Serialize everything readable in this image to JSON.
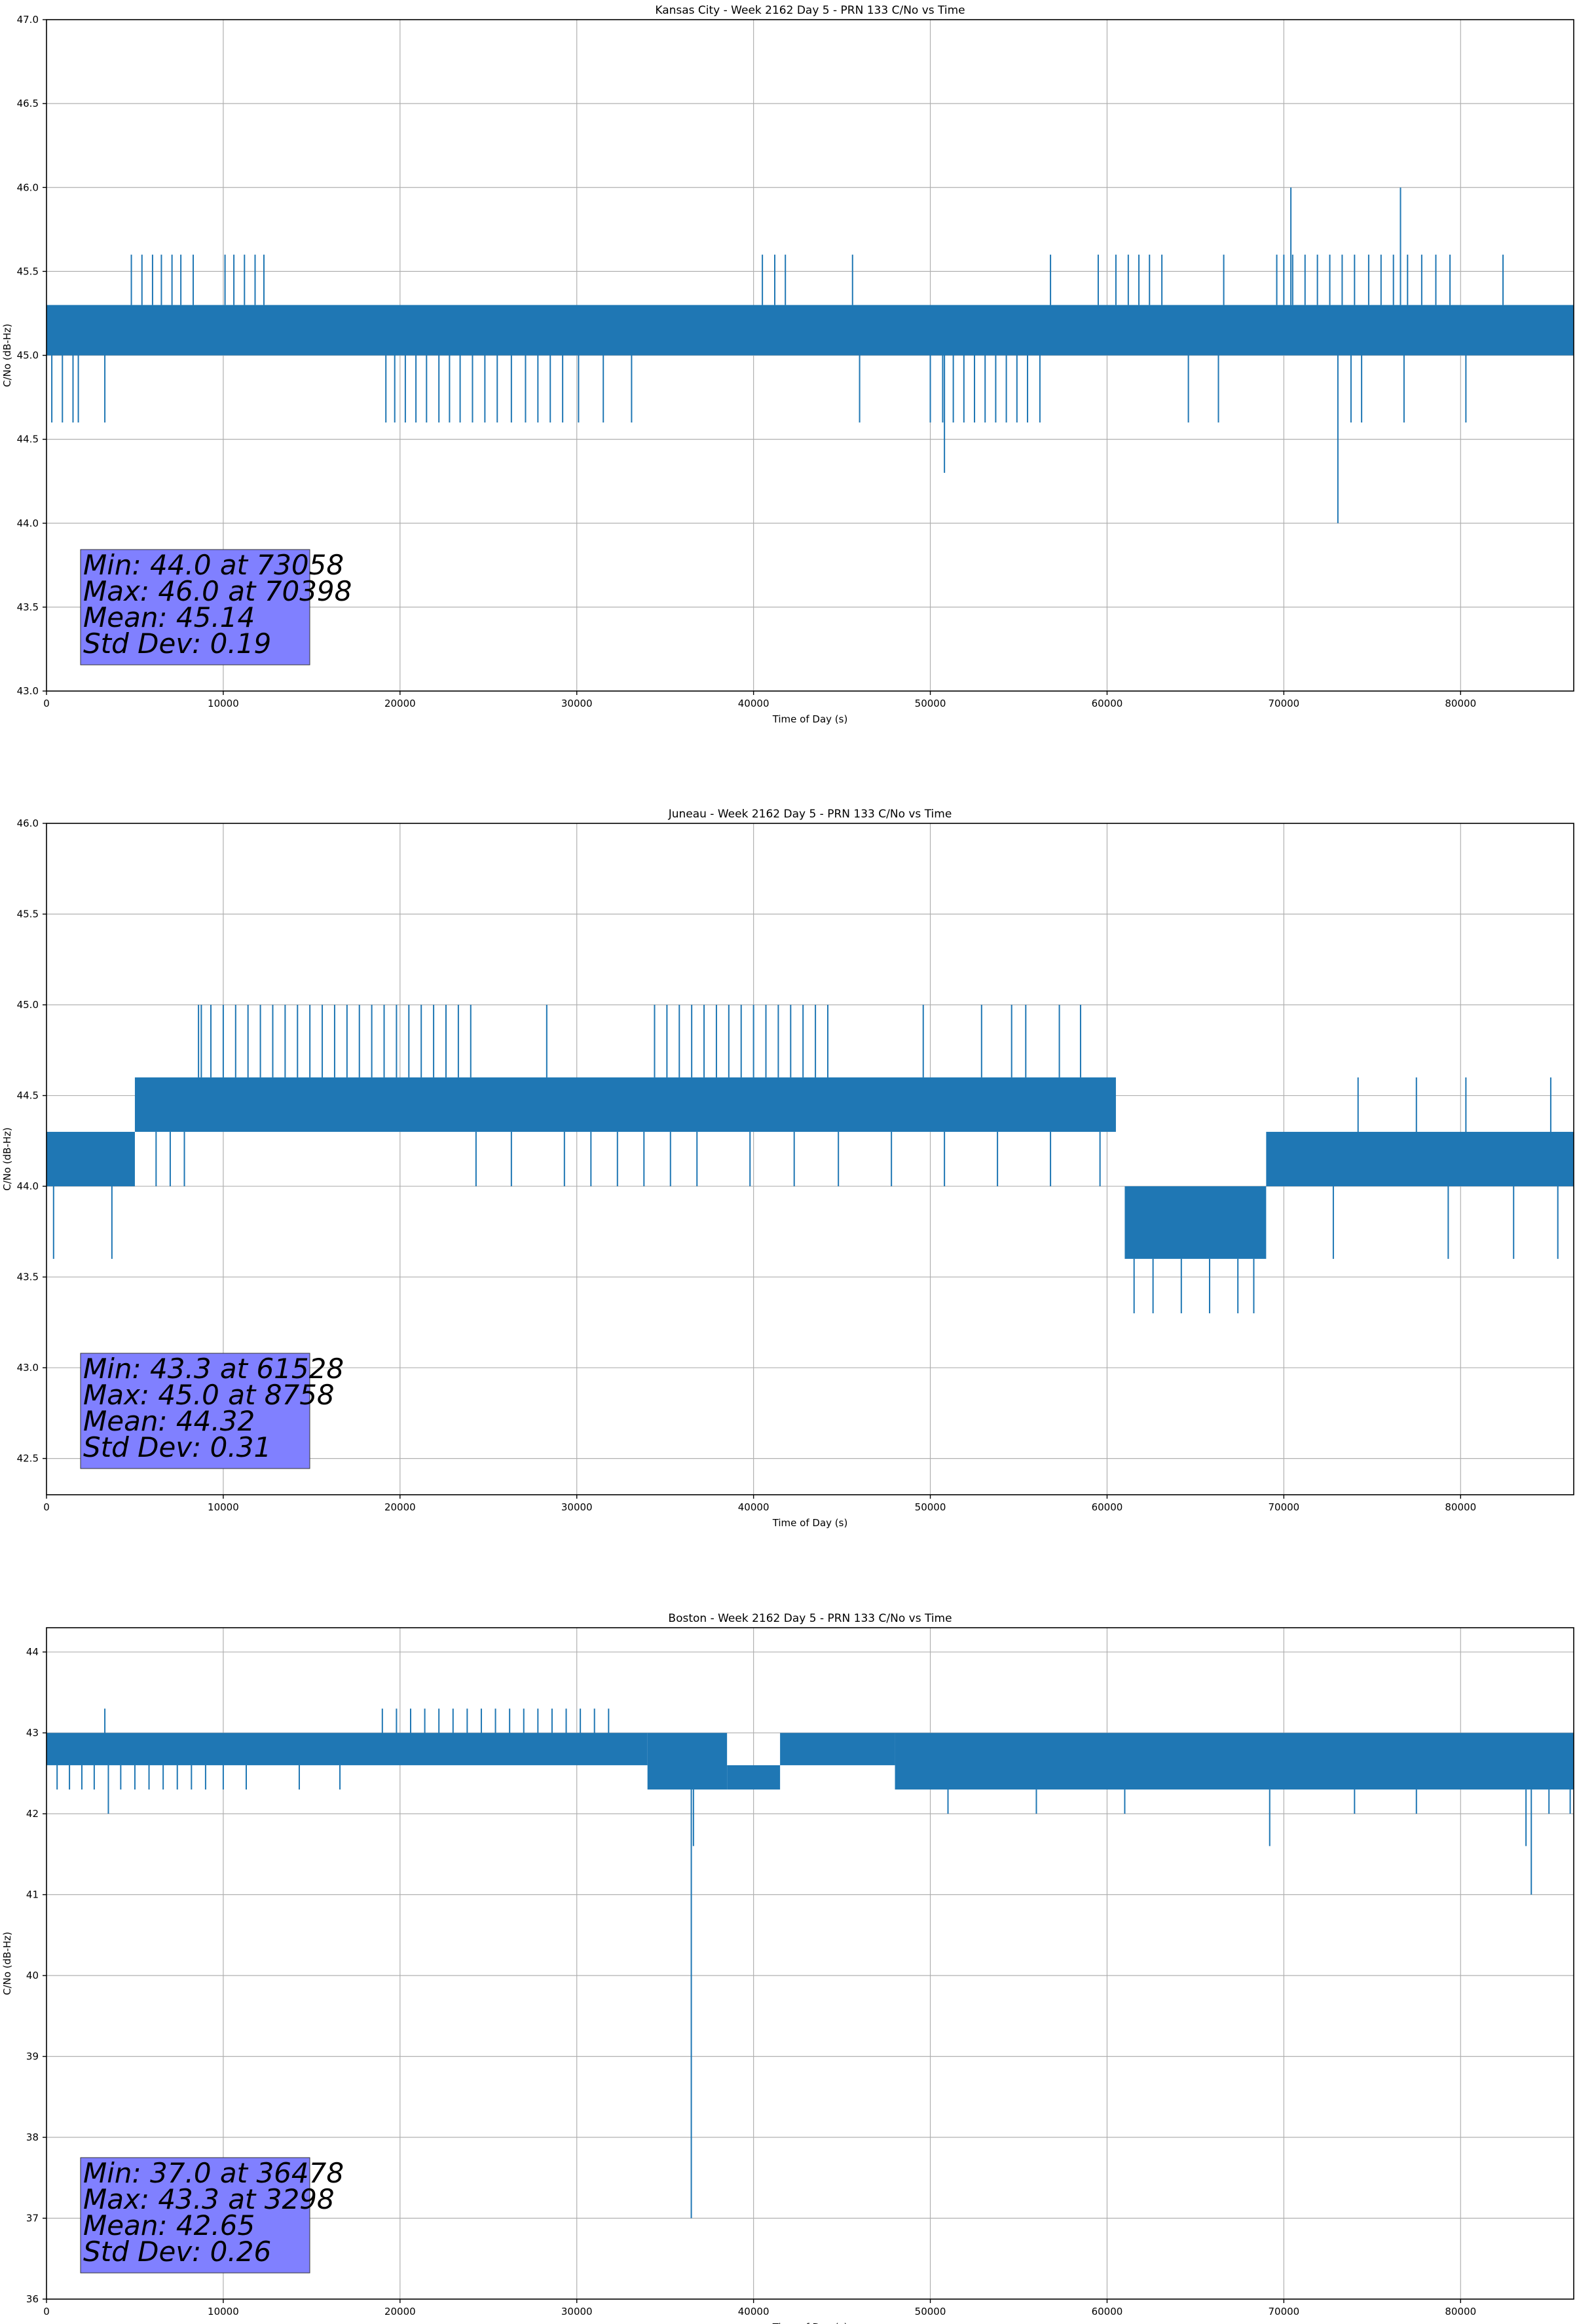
{
  "chart_data": [
    {
      "type": "line",
      "title": "Kansas City - Week 2162 Day 5 - PRN 133 C/No vs Time",
      "xlabel": "Time of Day (s)",
      "ylabel": "C/No (dB-Hz)",
      "xlim": [
        0,
        86400
      ],
      "ylim": [
        43.0,
        47.0
      ],
      "xticks": [
        0,
        10000,
        20000,
        30000,
        40000,
        50000,
        60000,
        70000,
        80000
      ],
      "yticks": [
        43.0,
        43.5,
        44.0,
        44.5,
        45.0,
        45.5,
        46.0,
        46.5,
        47.0
      ],
      "ytick_decimals": 1,
      "grid": true,
      "color": "#1f77b4",
      "bands": [
        {
          "x0": 0,
          "x1": 86400,
          "y0": 45.0,
          "y1": 45.3
        }
      ],
      "low_spikes": {
        "value": 44.6,
        "x": [
          300,
          900,
          1500,
          1800,
          3300,
          19200,
          19700,
          20300,
          20900,
          21500,
          22200,
          22800,
          23400,
          24100,
          24800,
          25500,
          26300,
          27100,
          27800,
          28500,
          29200,
          30100,
          31500,
          33100,
          46000,
          50000,
          50700,
          51300,
          51900,
          52500,
          53100,
          53700,
          54300,
          54900,
          55500,
          56200,
          64600,
          66300,
          73800,
          74400,
          76800,
          80300
        ]
      },
      "high_spikes": {
        "value": 45.6,
        "x": [
          4800,
          5400,
          6000,
          6500,
          7100,
          7600,
          8300,
          10100,
          10600,
          11200,
          11800,
          12300,
          40500,
          41200,
          41800,
          45600,
          56800,
          59500,
          60500,
          61200,
          61800,
          62400,
          63100,
          66600,
          69600,
          70000,
          70500,
          71200,
          71900,
          72600,
          73300,
          74000,
          74800,
          75500,
          76200,
          77000,
          77800,
          78600,
          79400,
          82400
        ]
      },
      "extremes": [
        {
          "x": 70398,
          "y": 46.0
        },
        {
          "x": 76600,
          "y": 46.0
        },
        {
          "x": 73058,
          "y": 44.0
        },
        {
          "x": 50800,
          "y": 44.3
        }
      ],
      "stats": [
        "Min: 44.0 at 73058",
        "Max: 46.0 at 70398",
        "Mean: 45.14",
        "Std Dev: 0.19"
      ]
    },
    {
      "type": "line",
      "title": "Juneau - Week 2162 Day 5 - PRN 133 C/No vs Time",
      "xlabel": "Time of Day (s)",
      "ylabel": "C/No (dB-Hz)",
      "xlim": [
        0,
        86400
      ],
      "ylim": [
        42.3,
        46.0
      ],
      "xticks": [
        0,
        10000,
        20000,
        30000,
        40000,
        50000,
        60000,
        70000,
        80000
      ],
      "yticks": [
        42.5,
        43.0,
        43.5,
        44.0,
        44.5,
        45.0,
        45.5,
        46.0
      ],
      "ytick_decimals": 1,
      "grid": true,
      "color": "#1f77b4",
      "bands": [
        {
          "x0": 0,
          "x1": 5000,
          "y0": 44.0,
          "y1": 44.3
        },
        {
          "x0": 5000,
          "x1": 60500,
          "y0": 44.3,
          "y1": 44.6
        },
        {
          "x0": 61000,
          "x1": 69000,
          "y0": 43.6,
          "y1": 44.0
        },
        {
          "x0": 69000,
          "x1": 86400,
          "y0": 44.0,
          "y1": 44.3
        }
      ],
      "low_spikes": {
        "value": 44.0,
        "x": [
          6200,
          7000,
          7800,
          24300,
          26300,
          29300,
          30800,
          32300,
          33800,
          35300,
          36800,
          39800,
          42300,
          44800,
          47800,
          50800,
          53800,
          56800,
          59600
        ]
      },
      "high_spikes": {
        "value": 45.0,
        "x": [
          8600,
          9300,
          10000,
          10700,
          11400,
          12100,
          12800,
          13500,
          14200,
          14900,
          15600,
          16300,
          17000,
          17700,
          18400,
          19100,
          19800,
          20500,
          21200,
          21900,
          22600,
          23300,
          24000,
          28300,
          34400,
          35100,
          35800,
          36500,
          37200,
          37900,
          38600,
          39300,
          40000,
          40700,
          41400,
          42100,
          42800,
          43500,
          44200,
          49600,
          52900,
          54600,
          55400,
          57300,
          58500
        ]
      },
      "extremes": [
        {
          "x": 8758,
          "y": 45.0
        },
        {
          "x": 61528,
          "y": 43.3
        },
        {
          "x": 62600,
          "y": 43.3
        },
        {
          "x": 64200,
          "y": 43.3
        },
        {
          "x": 65800,
          "y": 43.3
        },
        {
          "x": 67400,
          "y": 43.3
        },
        {
          "x": 68300,
          "y": 43.3
        },
        {
          "x": 3700,
          "y": 43.6
        },
        {
          "x": 400,
          "y": 43.6
        },
        {
          "x": 72800,
          "y": 43.6
        },
        {
          "x": 79300,
          "y": 43.6
        },
        {
          "x": 83000,
          "y": 43.6
        },
        {
          "x": 85500,
          "y": 43.6
        },
        {
          "x": 74200,
          "y": 44.6
        },
        {
          "x": 77500,
          "y": 44.6
        },
        {
          "x": 80300,
          "y": 44.6
        },
        {
          "x": 85100,
          "y": 44.6
        }
      ],
      "stats": [
        "Min: 43.3 at 61528",
        "Max: 45.0 at 8758",
        "Mean: 44.32",
        "Std Dev: 0.31"
      ]
    },
    {
      "type": "line",
      "title": "Boston - Week 2162 Day 5 - PRN 133 C/No vs Time",
      "xlabel": "Time of Day (s)",
      "ylabel": "C/No (dB-Hz)",
      "xlim": [
        0,
        86400
      ],
      "ylim": [
        36.0,
        44.3
      ],
      "xticks": [
        0,
        10000,
        20000,
        30000,
        40000,
        50000,
        60000,
        70000,
        80000
      ],
      "yticks": [
        36,
        37,
        38,
        39,
        40,
        41,
        42,
        43,
        44
      ],
      "ytick_decimals": 0,
      "grid": true,
      "color": "#1f77b4",
      "bands": [
        {
          "x0": 0,
          "x1": 34000,
          "y0": 42.6,
          "y1": 43.0
        },
        {
          "x0": 34000,
          "x1": 38500,
          "y0": 42.3,
          "y1": 43.0
        },
        {
          "x0": 38500,
          "x1": 41500,
          "y0": 42.3,
          "y1": 42.6
        },
        {
          "x0": 41500,
          "x1": 48000,
          "y0": 42.6,
          "y1": 43.0
        },
        {
          "x0": 48000,
          "x1": 86400,
          "y0": 42.3,
          "y1": 43.0
        }
      ],
      "low_spikes": {
        "value": 42.3,
        "x": [
          600,
          1300,
          2000,
          2700,
          4200,
          5000,
          5800,
          6600,
          7400,
          8200,
          9000,
          10000,
          11300,
          14300,
          16600
        ]
      },
      "high_spikes": {
        "value": 43.3,
        "x": [
          3300,
          19000,
          19800,
          20600,
          21400,
          22200,
          23000,
          23800,
          24600,
          25400,
          26200,
          27000,
          27800,
          28600,
          29400,
          30200,
          31000,
          31800
        ]
      },
      "extremes": [
        {
          "x": 36478,
          "y": 37.0
        },
        {
          "x": 36600,
          "y": 41.6
        },
        {
          "x": 84000,
          "y": 41.0
        },
        {
          "x": 83700,
          "y": 41.6
        },
        {
          "x": 69200,
          "y": 41.6
        },
        {
          "x": 3500,
          "y": 42.0
        },
        {
          "x": 51000,
          "y": 42.0
        },
        {
          "x": 56000,
          "y": 42.0
        },
        {
          "x": 61000,
          "y": 42.0
        },
        {
          "x": 74000,
          "y": 42.0
        },
        {
          "x": 77500,
          "y": 42.0
        },
        {
          "x": 85000,
          "y": 42.0
        },
        {
          "x": 86200,
          "y": 42.0
        }
      ],
      "stats": [
        "Min: 37.0 at 36478",
        "Max: 43.3 at 3298",
        "Mean: 42.65",
        "Std Dev: 0.26"
      ]
    }
  ]
}
